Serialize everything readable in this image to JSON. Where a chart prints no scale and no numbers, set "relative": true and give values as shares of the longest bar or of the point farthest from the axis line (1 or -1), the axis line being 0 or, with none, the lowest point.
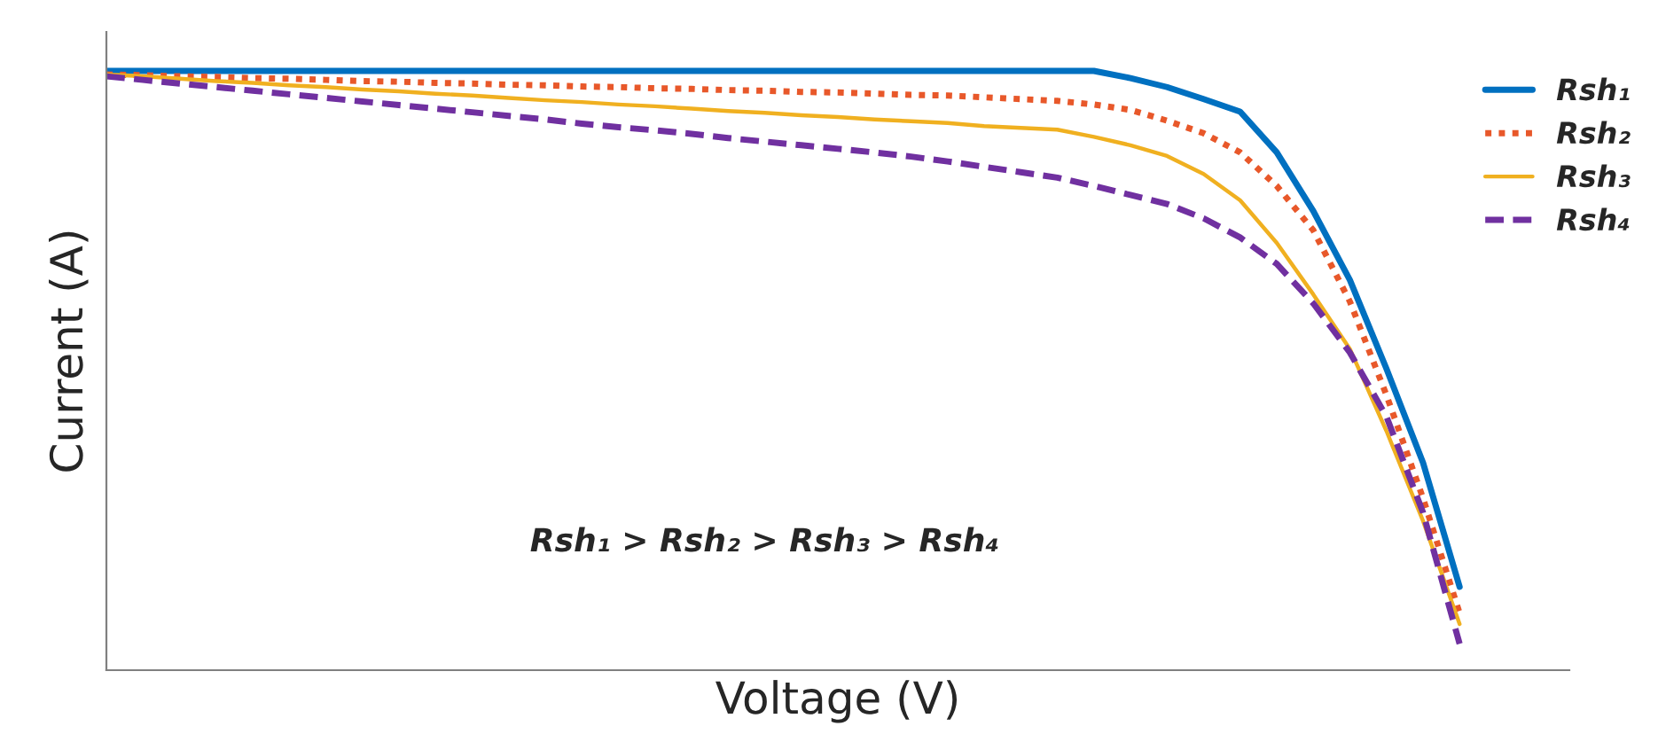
{
  "chart_data": {
    "type": "line",
    "relative": true,
    "xlabel": "Voltage (V)",
    "ylabel": "Current (A)",
    "legend": "top right",
    "categories": [
      null,
      null,
      null,
      null,
      null,
      null,
      null,
      null,
      null,
      null,
      null,
      null,
      null,
      null,
      null,
      null,
      null,
      null,
      null,
      null,
      null,
      null,
      null,
      null,
      null,
      null,
      null,
      null,
      null,
      null,
      null,
      null,
      null,
      null,
      null,
      null,
      null,
      null,
      null,
      null,
      null
    ],
    "series": [
      {
        "name": "Rsh₁",
        "color": "#0070c0",
        "line_style": "solid",
        "values": [
          1.0,
          1.0,
          1.0,
          1.0,
          1.0,
          1.0,
          1.0,
          1.0,
          1.0,
          1.0,
          1.0,
          1.0,
          1.0,
          1.0,
          1.0,
          1.0,
          1.0,
          1.0,
          1.0,
          1.0,
          1.0,
          1.0,
          1.0,
          1.0,
          1.0,
          1.0,
          1.0,
          1.0,
          0.988,
          0.973,
          0.953,
          0.932,
          0.864,
          0.766,
          0.651,
          0.503,
          0.346,
          0.139,
          null,
          null,
          null
        ]
      },
      {
        "name": "Rsh₂",
        "color": "#e8582a",
        "line_style": "dotted",
        "values": [
          0.994,
          0.993,
          0.991,
          0.99,
          0.988,
          0.987,
          0.985,
          0.983,
          0.982,
          0.98,
          0.979,
          0.977,
          0.976,
          0.974,
          0.973,
          0.971,
          0.97,
          0.968,
          0.967,
          0.965,
          0.964,
          0.962,
          0.96,
          0.959,
          0.956,
          0.953,
          0.95,
          0.944,
          0.935,
          0.917,
          0.896,
          0.864,
          0.808,
          0.734,
          0.615,
          0.459,
          0.287,
          0.095,
          null,
          null,
          null
        ]
      },
      {
        "name": "Rsh₃",
        "color": "#f0b020",
        "line_style": "solid",
        "values": [
          0.994,
          0.991,
          0.987,
          0.983,
          0.98,
          0.976,
          0.973,
          0.969,
          0.966,
          0.962,
          0.959,
          0.955,
          0.951,
          0.948,
          0.944,
          0.941,
          0.937,
          0.933,
          0.93,
          0.926,
          0.923,
          0.919,
          0.916,
          0.913,
          0.908,
          0.905,
          0.902,
          0.89,
          0.876,
          0.858,
          0.828,
          0.784,
          0.713,
          0.627,
          0.536,
          0.399,
          0.249,
          0.077,
          null,
          null,
          null
        ]
      },
      {
        "name": "Rsh₄",
        "color": "#7030a0",
        "line_style": "dashed",
        "values": [
          0.991,
          0.985,
          0.979,
          0.973,
          0.967,
          0.961,
          0.955,
          0.949,
          0.943,
          0.937,
          0.931,
          0.925,
          0.919,
          0.912,
          0.906,
          0.901,
          0.895,
          0.888,
          0.882,
          0.876,
          0.87,
          0.864,
          0.857,
          0.849,
          0.84,
          0.831,
          0.822,
          0.808,
          0.793,
          0.778,
          0.754,
          0.722,
          0.678,
          0.612,
          0.53,
          0.423,
          0.263,
          0.044,
          null,
          null,
          null
        ]
      }
    ],
    "annotations": [
      "Rsh₁ > Rsh₂ > Rsh₃ > Rsh₄"
    ]
  }
}
